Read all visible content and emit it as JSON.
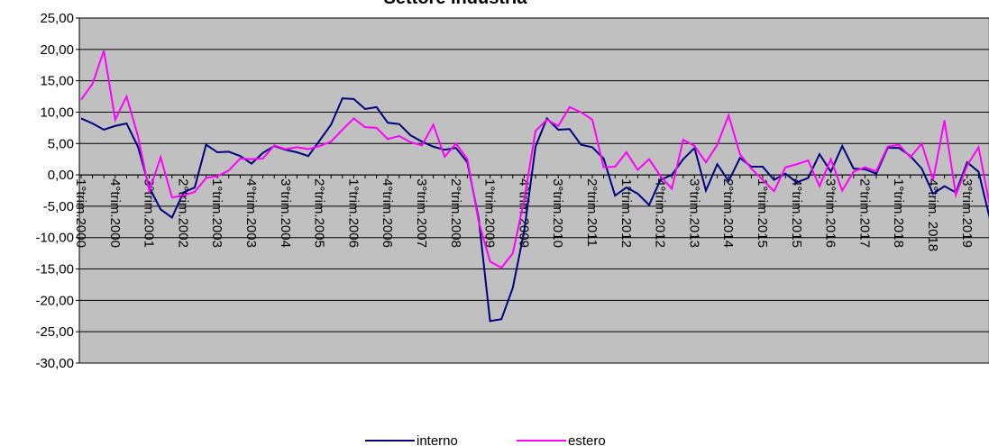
{
  "chart_data": {
    "type": "line",
    "title": "Settore Industria",
    "categories": [
      "1°trim.2000",
      null,
      null,
      "4°trim.2000",
      null,
      null,
      "3°trim.2001",
      null,
      null,
      "2°trim.2002",
      null,
      null,
      "1°trim.2003",
      null,
      null,
      "4°trim.2003",
      null,
      null,
      "3°trim.2004",
      null,
      null,
      "2°trim.2005",
      null,
      null,
      "1°trim.2006",
      null,
      null,
      "4°trim.2006",
      null,
      null,
      "3°trim.2007",
      null,
      null,
      "2°trim.2008",
      null,
      null,
      "1°trim.2009",
      null,
      null,
      "4°trim.2009",
      null,
      null,
      "3°trim.2010",
      null,
      null,
      "2°trim.2011",
      null,
      null,
      "1°trim.2012",
      null,
      null,
      "4°trim.2012",
      null,
      null,
      "3°trim.2013",
      null,
      null,
      "2°trim.2014",
      null,
      null,
      "1°trim.2015",
      null,
      null,
      "4°trim.2015",
      null,
      null,
      "3°trim.2016",
      null,
      null,
      "2°trim.2017",
      null,
      null,
      "1°trim.2018",
      null,
      null,
      "4°trim. 2018",
      null,
      null,
      "3°trim.2019",
      null,
      null
    ],
    "series": [
      {
        "name": "interno",
        "color": "#000080",
        "values": [
          9,
          8.2,
          7.2,
          7.8,
          8.2,
          4.5,
          -2,
          -5.5,
          -6.8,
          -2.8,
          -2,
          4.8,
          3.6,
          3.7,
          3,
          1.8,
          3.5,
          4.6,
          4,
          3.6,
          3,
          5.5,
          8,
          12.2,
          12.1,
          10.5,
          10.8,
          8.3,
          8.1,
          6.3,
          5.3,
          4.5,
          4,
          4.3,
          2,
          -7,
          -23.3,
          -23,
          -18,
          -9,
          4.5,
          9,
          7.2,
          7.3,
          4.8,
          4.4,
          2.6,
          -3.3,
          -2,
          -3,
          -4.8,
          -0.8,
          0,
          2.5,
          4.3,
          -2.5,
          1.7,
          -1,
          2.7,
          1.3,
          1.3,
          -0.8,
          0.2,
          -1.2,
          -0.5,
          3.3,
          0.5,
          4.6,
          1,
          0.9,
          0.2,
          4.3,
          4.3,
          3,
          1,
          -3,
          -1.8,
          -2.8,
          2,
          0.5,
          -7
        ]
      },
      {
        "name": "estero",
        "color": "#ff00ff",
        "values": [
          12,
          14.5,
          19.8,
          8.8,
          12.5,
          6.2,
          -2.6,
          2.8,
          -3.6,
          -3.3,
          -2.7,
          -0.5,
          -0.2,
          0.7,
          2.6,
          2.5,
          2.6,
          4.7,
          4.1,
          4.4,
          4.1,
          4.6,
          5.3,
          7.2,
          9,
          7.6,
          7.5,
          5.7,
          6.2,
          5.2,
          4.7,
          8,
          2.9,
          5,
          2.5,
          -7.5,
          -13.8,
          -14.8,
          -12.5,
          -4,
          7,
          8.8,
          7.8,
          10.8,
          10,
          8.8,
          1.2,
          1.3,
          3.6,
          0.8,
          2.5,
          -0.2,
          -2.2,
          5.6,
          4.6,
          2,
          4.8,
          9.5,
          3.3,
          1,
          -0.8,
          -2.6,
          1.2,
          1.7,
          2.3,
          -1.8,
          2.5,
          -2.5,
          0.5,
          1.2,
          0.6,
          4.5,
          4.8,
          2.8,
          5,
          -0.8,
          8.7,
          -3.2,
          1.5,
          4.4,
          -5
        ]
      }
    ],
    "ylim": [
      -30,
      25
    ],
    "yticks": [
      {
        "value": -30,
        "label": "-30,00"
      },
      {
        "value": -25,
        "label": "-25,00"
      },
      {
        "value": -20,
        "label": "-20,00"
      },
      {
        "value": -15,
        "label": "-15,00"
      },
      {
        "value": -10,
        "label": "-10,00"
      },
      {
        "value": -5,
        "label": "-5,00"
      },
      {
        "value": 0,
        "label": "0,00"
      },
      {
        "value": 5,
        "label": "5,00"
      },
      {
        "value": 10,
        "label": "10,00"
      },
      {
        "value": 15,
        "label": "15,00"
      },
      {
        "value": 20,
        "label": "20,00"
      },
      {
        "value": 25,
        "label": "25,00"
      }
    ],
    "grid": true
  }
}
